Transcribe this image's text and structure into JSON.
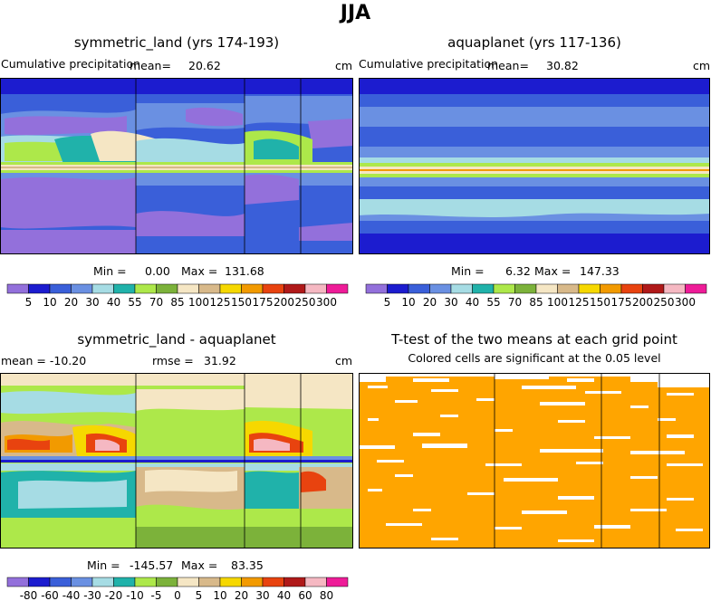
{
  "title": "JJA",
  "colors": {
    "levels": [
      "#9370DB",
      "#1C1CCF",
      "#3A5FD9",
      "#6A90E2",
      "#A6DCE4",
      "#20B2AA",
      "#ADE84A",
      "#7CB23A",
      "#F5E6C4",
      "#D8B98A",
      "#F6D800",
      "#F29A00",
      "#E8430F",
      "#B01919",
      "#F5B8C2",
      "#EE1C98"
    ],
    "diff": [
      "#9370DB",
      "#1C1CCF",
      "#3A5FD9",
      "#6A90E2",
      "#A6DCE4",
      "#20B2AA",
      "#ADE84A",
      "#7CB23A",
      "#F5E6C4",
      "#D8B98A",
      "#F6D800",
      "#F29A00",
      "#E8430F",
      "#B01919",
      "#F5B8C2",
      "#EE1C98"
    ],
    "significant": "#FFA500"
  },
  "panels": [
    {
      "title": "symmetric_land (yrs 174-193)",
      "left_label": "Cumulative precipitation",
      "mean_label": "mean=",
      "mean": "20.62",
      "units": "cm",
      "min_label": "Min =",
      "min": "0.00",
      "max_label": "Max =",
      "max": "131.68"
    },
    {
      "title": "aquaplanet (yrs 117-136)",
      "left_label": "Cumulative precipitation",
      "mean_label": "mean=",
      "mean": "30.82",
      "units": "cm",
      "min_label": "Min =",
      "min": "6.32",
      "max_label": "Max =",
      "max": "147.33"
    },
    {
      "title": "symmetric_land - aquaplanet",
      "left_label": "mean = -10.20",
      "mean_label": "rmse =",
      "mean": "31.92",
      "units": "cm",
      "min_label": "Min =",
      "min": "-145.57",
      "max_label": "Max =",
      "max": "83.35"
    },
    {
      "title": "T-test of the two means at each grid point",
      "subtitle": "Colored cells are significant at the 0.05 level"
    }
  ],
  "chart_data": [
    {
      "type": "heatmap",
      "title": "symmetric_land (yrs 174-193)",
      "colorbar_levels": [
        "5",
        "10",
        "20",
        "30",
        "40",
        "55",
        "70",
        "85",
        "100",
        "125",
        "150",
        "175",
        "200",
        "250",
        "300"
      ],
      "mean": 20.62,
      "min": 0.0,
      "max": 131.68
    },
    {
      "type": "heatmap",
      "title": "aquaplanet (yrs 117-136)",
      "colorbar_levels": [
        "5",
        "10",
        "20",
        "30",
        "40",
        "55",
        "70",
        "85",
        "100",
        "125",
        "150",
        "175",
        "200",
        "250",
        "300"
      ],
      "mean": 30.82,
      "min": 6.32,
      "max": 147.33
    },
    {
      "type": "heatmap",
      "title": "symmetric_land - aquaplanet",
      "colorbar_levels": [
        "-80",
        "-60",
        "-40",
        "-30",
        "-20",
        "-10",
        "-5",
        "0",
        "5",
        "10",
        "20",
        "30",
        "40",
        "60",
        "80"
      ],
      "mean": -10.2,
      "rmse": 31.92,
      "min": -145.57,
      "max": 83.35
    },
    {
      "type": "heatmap",
      "title": "T-test of the two means at each grid point",
      "subtitle": "Colored cells are significant at the 0.05 level"
    }
  ]
}
